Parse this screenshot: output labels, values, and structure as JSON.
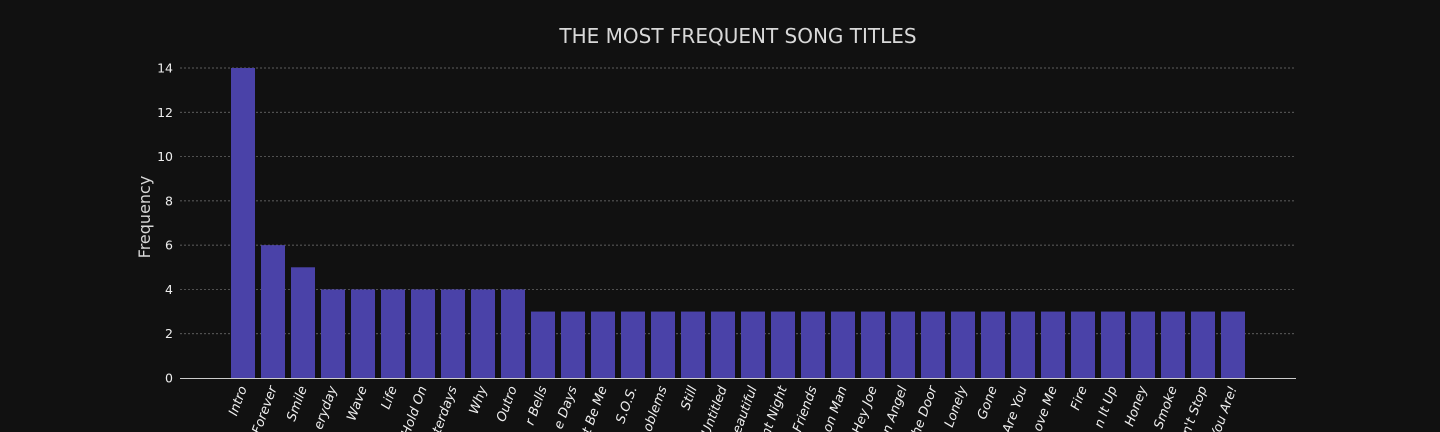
{
  "colors": {
    "background": "#111111",
    "bar": "#4a42a8",
    "text": "#d9d9d9",
    "grid": "#777777"
  },
  "chart_data": {
    "type": "bar",
    "title": "THE MOST FREQUENT SONG TITLES",
    "xlabel": "",
    "ylabel": "Frequency",
    "ylim": [
      0,
      14
    ],
    "yticks": [
      0,
      2,
      4,
      6,
      8,
      10,
      12,
      14
    ],
    "grid": true,
    "categories": [
      "Intro",
      "Forever",
      "Smile",
      "Everyday",
      "Wave",
      "Life",
      "Hold On",
      "Yesterdays",
      "Why",
      "Outro",
      "Silver Bells",
      "These Days",
      "Let It Be Me",
      "S.O.S.",
      "Problems",
      "Still",
      "Untitled",
      "Beautiful",
      "Silent Night",
      "Friends",
      "Moon Man",
      "Hey Joe",
      "Fallen Angel",
      "The Door",
      "Lonely",
      "Gone",
      "Where Are You",
      "Love Me",
      "Fire",
      "Turn It Up",
      "Honey",
      "Smoke",
      "Don't Stop",
      "There You Are!"
    ],
    "visible_labels": [
      "Intro",
      "Forever",
      "Smile",
      "eryday",
      "Wave",
      "Life",
      "Hold On",
      "terdays",
      "Why",
      "Outro",
      "r Bells",
      "e Days",
      "t Be Me",
      "S.O.S.",
      "oblems",
      "Still",
      "Untitled",
      "eautiful",
      "nt Night",
      "Friends",
      "on Man",
      "Hey Joe",
      "n Angel",
      "he Door",
      "Lonely",
      "Gone",
      "Are You",
      "ove Me",
      "Fire",
      "n It Up",
      "Honey",
      "Smoke",
      "n't Stop",
      "You Are!"
    ],
    "values": [
      14,
      6,
      5,
      4,
      4,
      4,
      4,
      4,
      4,
      4,
      3,
      3,
      3,
      3,
      3,
      3,
      3,
      3,
      3,
      3,
      3,
      3,
      3,
      3,
      3,
      3,
      3,
      3,
      3,
      3,
      3,
      3,
      3,
      3
    ]
  }
}
